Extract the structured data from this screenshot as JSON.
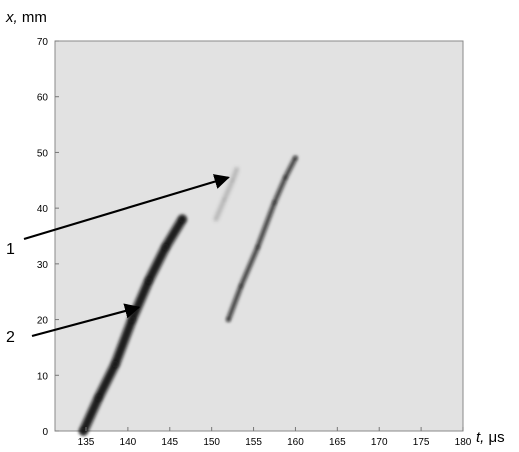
{
  "chart_data": {
    "type": "scatter",
    "xlabel_var": "t,",
    "xlabel_unit": " μs",
    "ylabel_var": "x,",
    "ylabel_unit": " mm",
    "xlim": [
      131.3,
      180
    ],
    "ylim": [
      0,
      70
    ],
    "x_ticks": [
      "135",
      "140",
      "145",
      "150",
      "155",
      "160",
      "165",
      "170",
      "175",
      "180"
    ],
    "y_ticks": [
      "0",
      "10",
      "20",
      "30",
      "40",
      "50",
      "60",
      "70"
    ],
    "grid": false,
    "plot_background": "#e2e2e2",
    "trace_color": "#111111",
    "series": [
      {
        "id": "trace-2",
        "points": [
          [
            134.7,
            0
          ],
          [
            136.5,
            6
          ],
          [
            138.5,
            12
          ],
          [
            140.5,
            20
          ],
          [
            142.5,
            27
          ],
          [
            144.5,
            33
          ],
          [
            146.5,
            38
          ]
        ]
      },
      {
        "id": "trace-1-main",
        "points": [
          [
            152,
            20
          ],
          [
            153.5,
            26
          ],
          [
            155.5,
            33
          ],
          [
            157.5,
            41
          ],
          [
            158.8,
            45.5
          ],
          [
            160,
            49
          ]
        ]
      },
      {
        "id": "trace-1-faint",
        "points": [
          [
            150.5,
            38
          ],
          [
            151.5,
            41.5
          ],
          [
            152.5,
            45
          ],
          [
            153,
            47
          ]
        ]
      }
    ],
    "annotations": [
      {
        "label": "1",
        "arrow_tip": [
          152,
          45.5
        ]
      },
      {
        "label": "2",
        "arrow_tip": [
          141.3,
          22.2
        ]
      }
    ]
  }
}
